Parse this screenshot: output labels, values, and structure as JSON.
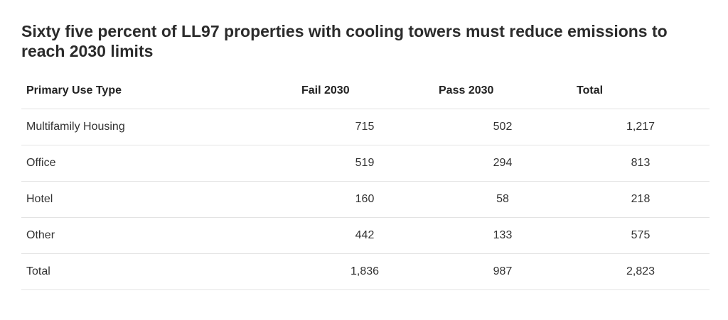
{
  "title": "Sixty five percent of LL97 properties with cooling towers must reduce emissions to reach 2030 limits",
  "chart_data": {
    "type": "table",
    "title": "Sixty five percent of LL97 properties with cooling towers must reduce emissions to reach 2030 limits",
    "columns": [
      "Primary Use Type",
      "Fail 2030",
      "Pass 2030",
      "Total"
    ],
    "rows": [
      {
        "type": "Multifamily Housing",
        "fail": "715",
        "pass": "502",
        "total": "1,217"
      },
      {
        "type": "Office",
        "fail": "519",
        "pass": "294",
        "total": "813"
      },
      {
        "type": "Hotel",
        "fail": "160",
        "pass": "58",
        "total": "218"
      },
      {
        "type": "Other",
        "fail": "442",
        "pass": "133",
        "total": "575"
      },
      {
        "type": "Total",
        "fail": "1,836",
        "pass": "987",
        "total": "2,823"
      }
    ]
  }
}
